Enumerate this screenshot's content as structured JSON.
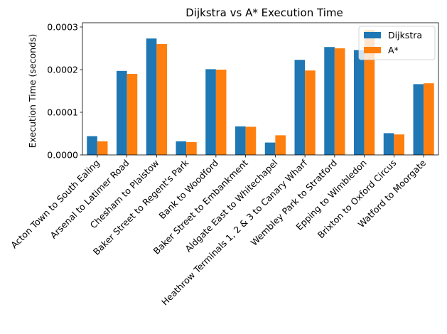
{
  "chart_data": {
    "type": "bar",
    "title": "Dijkstra vs A* Execution Time",
    "xlabel": "",
    "ylabel": "Execution Time (seconds)",
    "ylim": [
      0,
      0.00031
    ],
    "yticks": [
      0.0,
      0.0001,
      0.0002,
      0.0003
    ],
    "ytick_labels": [
      "0.0000",
      "0.0001",
      "0.0002",
      "0.0003"
    ],
    "legend_position": "top-right",
    "categories": [
      "Acton Town to South Ealing",
      "Arsenal to Latimer Road",
      "Chesham to Plaistow",
      "Baker Street to Regent's Park",
      "Bank to Woodford",
      "Baker Street to Embankment",
      "Aldgate East to Whitechapel",
      "Heathrow Terminals 1, 2 & 3 to Canary Wharf",
      "Wembley Park to Stratford",
      "Epping to Wimbledon",
      "Brixton to Oxford Circus",
      "Watford to Moorgate"
    ],
    "series": [
      {
        "name": "Dijkstra",
        "color": "#1f77b4",
        "values": [
          4.4e-05,
          0.000197,
          0.000273,
          3.2e-05,
          0.000201,
          6.7e-05,
          2.9e-05,
          0.000223,
          0.000253,
          0.000246,
          5.1e-05,
          0.000166
        ]
      },
      {
        "name": "A*",
        "color": "#ff7f0e",
        "values": [
          3.2e-05,
          0.00019,
          0.00026,
          3e-05,
          0.0002,
          6.6e-05,
          4.6e-05,
          0.000198,
          0.00025,
          0.000293,
          4.8e-05,
          0.000168
        ]
      }
    ]
  }
}
